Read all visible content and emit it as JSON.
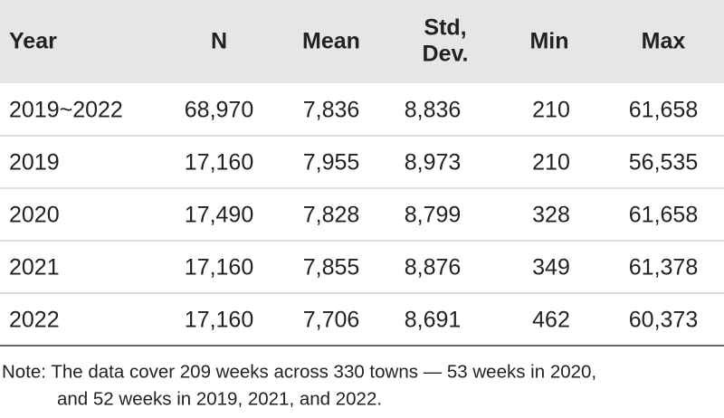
{
  "table": {
    "header": [
      "Year",
      "N",
      "Mean",
      [
        "Std,",
        "Dev."
      ],
      "Min",
      "Max"
    ],
    "rows": [
      [
        "2019~2022",
        "68,970",
        "7,836",
        "8,836",
        "210",
        "61,658"
      ],
      [
        "2019",
        "17,160",
        "7,955",
        "8,973",
        "210",
        "56,535"
      ],
      [
        "2020",
        "17,490",
        "7,828",
        "8,799",
        "328",
        "61,658"
      ],
      [
        "2021",
        "17,160",
        "7,855",
        "8,876",
        "349",
        "61,378"
      ],
      [
        "2022",
        "17,160",
        "7,706",
        "8,691",
        "462",
        "60,373"
      ]
    ],
    "note": [
      "Note: The data cover 209 weeks across 330 towns — 53 weeks in 2020,",
      "and 52 weeks in 2019, 2021, and 2022."
    ]
  }
}
